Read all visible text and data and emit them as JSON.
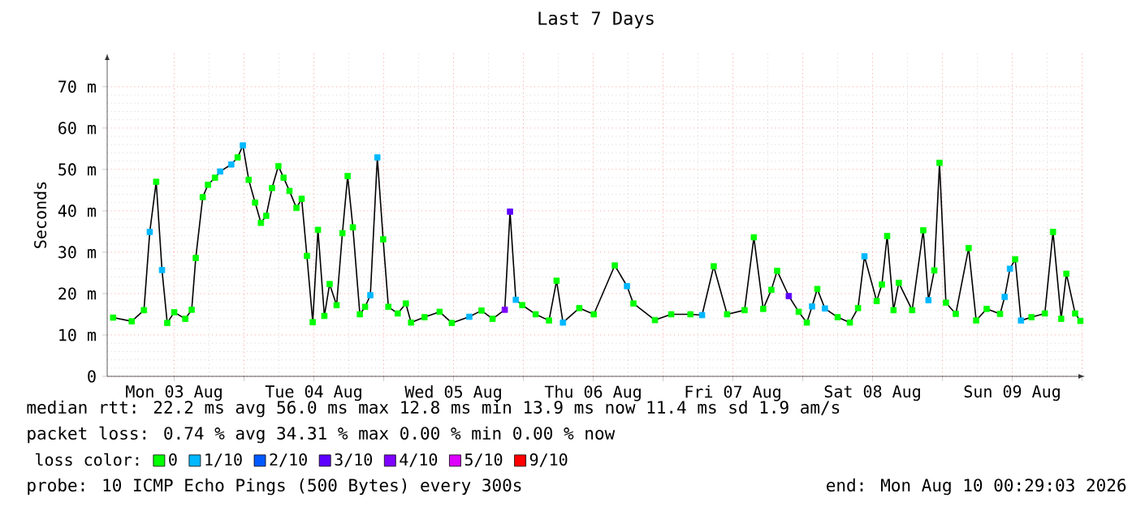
{
  "chart_data": {
    "type": "scatter",
    "title": "Last 7 Days",
    "ylabel": "Seconds",
    "legend_title": "loss color:",
    "legend": "bottom",
    "grid": true,
    "marker": "square",
    "xlim": [
      "2026-08-03T00:29",
      "2026-08-10T00:29"
    ],
    "ylim": [
      0,
      78
    ],
    "xticks": [
      {
        "value": "2026-08-03T12:00",
        "label": "Mon 03 Aug"
      },
      {
        "value": "2026-08-04T00:00",
        "label": null
      },
      {
        "value": "2026-08-04T12:00",
        "label": "Tue 04 Aug"
      },
      {
        "value": "2026-08-05T00:00",
        "label": null
      },
      {
        "value": "2026-08-05T12:00",
        "label": "Wed 05 Aug"
      },
      {
        "value": "2026-08-06T00:00",
        "label": null
      },
      {
        "value": "2026-08-06T12:00",
        "label": "Thu 06 Aug"
      },
      {
        "value": "2026-08-07T00:00",
        "label": null
      },
      {
        "value": "2026-08-07T12:00",
        "label": "Fri 07 Aug"
      },
      {
        "value": "2026-08-08T00:00",
        "label": null
      },
      {
        "value": "2026-08-08T12:00",
        "label": "Sat 08 Aug"
      },
      {
        "value": "2026-08-09T00:00",
        "label": null
      },
      {
        "value": "2026-08-09T12:00",
        "label": "Sun 09 Aug"
      },
      {
        "value": "2026-08-10T00:00",
        "label": null
      }
    ],
    "yticks": [
      0,
      {
        "value": 10,
        "label": "10 m"
      },
      {
        "value": 20,
        "label": "20 m"
      },
      {
        "value": 30,
        "label": "30 m"
      },
      {
        "value": 40,
        "label": "40 m"
      },
      {
        "value": 50,
        "label": "50 m"
      },
      {
        "value": 60,
        "label": "60 m"
      },
      {
        "value": 70,
        "label": "70 m"
      }
    ],
    "series": [
      {
        "type": "line",
        "marker": "none",
        "color": "#000000",
        "x": [
          "2026-08-03T01:30",
          "2026-08-03T04:42",
          "2026-08-03T06:48",
          "2026-08-03T07:48",
          "2026-08-03T08:54",
          "2026-08-03T09:54",
          "2026-08-03T10:48",
          "2026-08-03T12:00",
          "2026-08-03T13:54",
          "2026-08-03T15:00",
          "2026-08-03T15:42",
          "2026-08-03T16:54",
          "2026-08-03T17:48",
          "2026-08-03T19:00",
          "2026-08-03T19:54",
          "2026-08-03T21:48",
          "2026-08-03T22:54",
          "2026-08-03T23:48",
          "2026-08-04T00:48",
          "2026-08-04T01:54",
          "2026-08-04T02:54",
          "2026-08-04T03:48",
          "2026-08-04T04:48",
          "2026-08-04T05:54",
          "2026-08-04T06:48",
          "2026-08-04T07:48",
          "2026-08-04T09:00",
          "2026-08-04T09:54",
          "2026-08-04T10:48",
          "2026-08-04T11:48",
          "2026-08-04T12:42",
          "2026-08-04T13:48",
          "2026-08-04T14:42",
          "2026-08-04T15:54",
          "2026-08-04T16:54",
          "2026-08-04T17:48",
          "2026-08-04T18:42",
          "2026-08-04T19:54",
          "2026-08-04T20:48",
          "2026-08-04T21:42",
          "2026-08-04T22:54",
          "2026-08-04T23:54",
          "2026-08-05T00:48",
          "2026-08-05T02:24",
          "2026-08-05T03:48",
          "2026-08-05T04:42",
          "2026-08-05T07:00",
          "2026-08-05T09:36",
          "2026-08-05T11:42",
          "2026-08-05T14:42",
          "2026-08-05T16:48",
          "2026-08-05T18:42",
          "2026-08-05T20:48",
          "2026-08-05T21:42",
          "2026-08-05T22:42",
          "2026-08-05T23:48",
          "2026-08-06T02:06",
          "2026-08-06T04:24",
          "2026-08-06T05:42",
          "2026-08-06T06:48",
          "2026-08-06T09:36",
          "2026-08-06T12:06",
          "2026-08-06T15:42",
          "2026-08-06T17:48",
          "2026-08-06T18:54",
          "2026-08-06T22:36",
          "2026-08-07T01:24",
          "2026-08-07T04:42",
          "2026-08-07T06:42",
          "2026-08-07T08:42",
          "2026-08-07T11:00",
          "2026-08-07T14:00",
          "2026-08-07T15:36",
          "2026-08-07T17:12",
          "2026-08-07T18:36",
          "2026-08-07T19:36",
          "2026-08-07T21:36",
          "2026-08-07T23:18",
          "2026-08-08T00:42",
          "2026-08-08T01:36",
          "2026-08-08T02:30",
          "2026-08-08T03:48",
          "2026-08-08T06:00",
          "2026-08-08T08:06",
          "2026-08-08T09:30",
          "2026-08-08T10:36",
          "2026-08-08T12:42",
          "2026-08-08T13:36",
          "2026-08-08T14:30",
          "2026-08-08T15:36",
          "2026-08-08T16:30",
          "2026-08-08T18:48",
          "2026-08-08T20:42",
          "2026-08-08T21:36",
          "2026-08-08T22:36",
          "2026-08-08T23:30",
          "2026-08-09T00:36",
          "2026-08-09T02:18",
          "2026-08-09T04:30",
          "2026-08-09T05:48",
          "2026-08-09T07:36",
          "2026-08-09T09:54",
          "2026-08-09T10:42",
          "2026-08-09T11:36",
          "2026-08-09T12:30",
          "2026-08-09T13:30",
          "2026-08-09T15:18",
          "2026-08-09T17:36",
          "2026-08-09T19:00",
          "2026-08-09T20:24",
          "2026-08-09T21:18",
          "2026-08-09T22:48",
          "2026-08-09T23:42"
        ],
        "values": [
          14.2,
          13.3,
          16.0,
          34.9,
          47.0,
          25.7,
          12.9,
          15.5,
          13.9,
          16.1,
          28.6,
          43.3,
          46.3,
          48.0,
          49.5,
          51.2,
          52.9,
          55.8,
          47.5,
          42.0,
          37.1,
          38.8,
          45.5,
          50.8,
          48.0,
          44.8,
          40.7,
          42.9,
          29.1,
          13.1,
          35.4,
          14.6,
          22.3,
          17.2,
          34.6,
          48.4,
          36.0,
          15.0,
          16.8,
          19.6,
          52.9,
          33.1,
          16.8,
          15.2,
          17.6,
          13.0,
          14.3,
          15.6,
          12.9,
          14.4,
          15.9,
          13.9,
          16.1,
          39.8,
          18.5,
          17.2,
          15.0,
          13.5,
          23.1,
          13.0,
          16.5,
          15.0,
          26.8,
          21.8,
          17.6,
          13.6,
          15.0,
          15.0,
          14.8,
          26.6,
          15.0,
          16.0,
          33.6,
          16.3,
          20.9,
          25.5,
          19.4,
          15.6,
          13.0,
          16.9,
          21.1,
          16.4,
          14.3,
          13.0,
          16.5,
          29.0,
          18.2,
          22.2,
          33.9,
          16.0,
          22.6,
          16.0,
          35.3,
          18.4,
          25.6,
          51.6,
          17.8,
          15.1,
          31.0,
          13.5,
          16.3,
          15.1,
          19.2,
          26.0,
          28.3,
          13.5,
          14.3,
          15.2,
          34.9,
          13.9,
          24.8,
          15.2,
          13.4
        ]
      },
      {
        "name": "0",
        "color": "#00ff00",
        "x": [
          "2026-08-03T01:30",
          "2026-08-03T04:42",
          "2026-08-03T06:48",
          "2026-08-03T08:54",
          "2026-08-03T10:48",
          "2026-08-03T12:00",
          "2026-08-03T13:54",
          "2026-08-03T15:00",
          "2026-08-03T15:42",
          "2026-08-03T16:54",
          "2026-08-03T17:48",
          "2026-08-03T19:00",
          "2026-08-03T22:54",
          "2026-08-04T00:48",
          "2026-08-04T01:54",
          "2026-08-04T02:54",
          "2026-08-04T03:48",
          "2026-08-04T04:48",
          "2026-08-04T05:54",
          "2026-08-04T06:48",
          "2026-08-04T07:48",
          "2026-08-04T09:00",
          "2026-08-04T09:54",
          "2026-08-04T10:48",
          "2026-08-04T11:48",
          "2026-08-04T12:42",
          "2026-08-04T13:48",
          "2026-08-04T14:42",
          "2026-08-04T15:54",
          "2026-08-04T16:54",
          "2026-08-04T17:48",
          "2026-08-04T18:42",
          "2026-08-04T19:54",
          "2026-08-04T20:48",
          "2026-08-04T23:54",
          "2026-08-05T00:48",
          "2026-08-05T02:24",
          "2026-08-05T03:48",
          "2026-08-05T04:42",
          "2026-08-05T07:00",
          "2026-08-05T09:36",
          "2026-08-05T11:42",
          "2026-08-05T16:48",
          "2026-08-05T18:42",
          "2026-08-05T23:48",
          "2026-08-06T02:06",
          "2026-08-06T04:24",
          "2026-08-06T05:42",
          "2026-08-06T09:36",
          "2026-08-06T12:06",
          "2026-08-06T15:42",
          "2026-08-06T18:54",
          "2026-08-06T22:36",
          "2026-08-07T01:24",
          "2026-08-07T04:42",
          "2026-08-07T08:42",
          "2026-08-07T11:00",
          "2026-08-07T14:00",
          "2026-08-07T15:36",
          "2026-08-07T17:12",
          "2026-08-07T18:36",
          "2026-08-07T19:36",
          "2026-08-07T23:18",
          "2026-08-08T00:42",
          "2026-08-08T02:30",
          "2026-08-08T06:00",
          "2026-08-08T08:06",
          "2026-08-08T09:30",
          "2026-08-08T12:42",
          "2026-08-08T13:36",
          "2026-08-08T14:30",
          "2026-08-08T15:36",
          "2026-08-08T16:30",
          "2026-08-08T18:48",
          "2026-08-08T20:42",
          "2026-08-08T22:36",
          "2026-08-08T23:30",
          "2026-08-09T00:36",
          "2026-08-09T02:18",
          "2026-08-09T04:30",
          "2026-08-09T05:48",
          "2026-08-09T07:36",
          "2026-08-09T09:54",
          "2026-08-09T12:30",
          "2026-08-09T15:18",
          "2026-08-09T17:36",
          "2026-08-09T19:00",
          "2026-08-09T20:24",
          "2026-08-09T21:18",
          "2026-08-09T22:48",
          "2026-08-09T23:42"
        ],
        "values": [
          14.2,
          13.3,
          16.0,
          47.0,
          12.9,
          15.5,
          13.9,
          16.1,
          28.6,
          43.3,
          46.3,
          48.0,
          52.9,
          47.5,
          42.0,
          37.1,
          38.8,
          45.5,
          50.8,
          48.0,
          44.8,
          40.7,
          42.9,
          29.1,
          13.1,
          35.4,
          14.6,
          22.3,
          17.2,
          34.6,
          48.4,
          36.0,
          15.0,
          16.8,
          33.1,
          16.8,
          15.2,
          17.6,
          13.0,
          14.3,
          15.6,
          12.9,
          15.9,
          13.9,
          17.2,
          15.0,
          13.5,
          23.1,
          16.5,
          15.0,
          26.8,
          17.6,
          13.6,
          15.0,
          15.0,
          26.6,
          15.0,
          16.0,
          33.6,
          16.3,
          20.9,
          25.5,
          15.6,
          13.0,
          21.1,
          14.3,
          13.0,
          16.5,
          18.2,
          22.2,
          33.9,
          16.0,
          22.6,
          16.0,
          35.3,
          25.6,
          51.6,
          17.8,
          15.1,
          31.0,
          13.5,
          16.3,
          15.1,
          28.3,
          14.3,
          15.2,
          34.9,
          13.9,
          24.8,
          15.2,
          13.4
        ]
      },
      {
        "name": "1/10",
        "color": "#00b8ff",
        "x": [
          "2026-08-03T07:48",
          "2026-08-03T09:54",
          "2026-08-03T19:54",
          "2026-08-03T21:48",
          "2026-08-03T23:48",
          "2026-08-04T21:42",
          "2026-08-04T22:54",
          "2026-08-05T14:42",
          "2026-08-05T22:42",
          "2026-08-06T06:48",
          "2026-08-06T17:48",
          "2026-08-07T06:42",
          "2026-08-08T01:36",
          "2026-08-08T03:48",
          "2026-08-08T10:36",
          "2026-08-08T21:36",
          "2026-08-09T10:42",
          "2026-08-09T11:36",
          "2026-08-09T13:30"
        ],
        "values": [
          34.9,
          25.7,
          49.5,
          51.2,
          55.8,
          19.6,
          52.9,
          14.4,
          18.5,
          13.0,
          21.8,
          14.8,
          16.9,
          16.4,
          29.0,
          18.4,
          19.2,
          26.0,
          13.5
        ]
      },
      {
        "name": "2/10",
        "color": "#0059ff"
      },
      {
        "name": "3/10",
        "color": "#5e00ff",
        "x": [
          "2026-08-05T21:42",
          "2026-08-07T21:36"
        ],
        "values": [
          39.8,
          19.4
        ]
      },
      {
        "name": "4/10",
        "color": "#7e00ff",
        "x": [
          "2026-08-05T20:48"
        ],
        "values": [
          16.1
        ]
      },
      {
        "name": "5/10",
        "color": "#dd00ff"
      },
      {
        "name": "9/10",
        "color": "#ff0000"
      }
    ],
    "annotations": [
      "median rtt:  22.2 ms avg  56.0 ms max  12.8 ms min  13.9 ms now  11.4 ms sd  1.9   am/s",
      "packet loss: 0.74 % avg  34.31 % max  0.00 % min  0.00 % now",
      "probe:       10 ICMP Echo Pings (500 Bytes) every 300s",
      "end: Mon Aug 10 00:29:03 2026"
    ]
  }
}
